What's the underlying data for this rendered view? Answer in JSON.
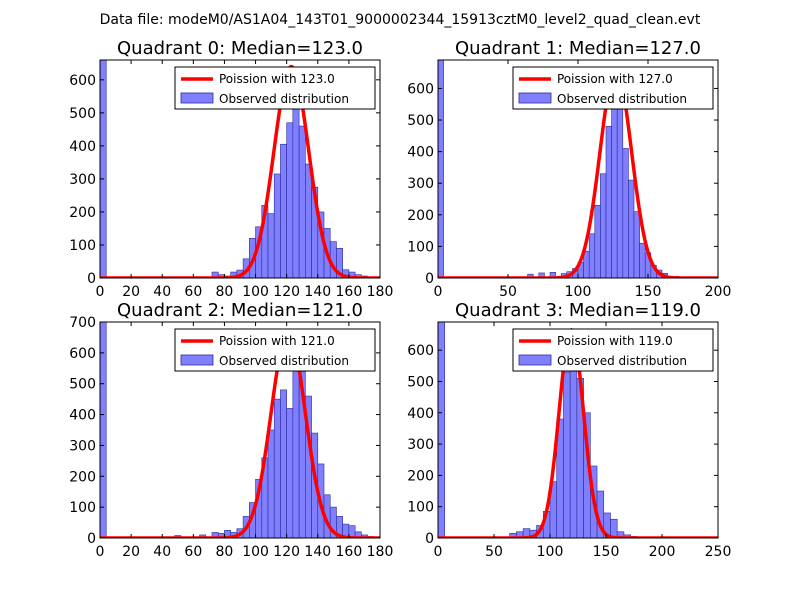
{
  "suptitle": "Data file: modeM0/AS1A04_143T01_9000002344_15913cztM0_level2_quad_clean.evt",
  "colors": {
    "curve": "#ff0000",
    "bar_fill": "#8080ff",
    "bar_edge": "#2a2a99",
    "frame": "#000000"
  },
  "chart_data": [
    {
      "type": "bar+line",
      "title": "Quadrant 0: Median=123.0",
      "legend": {
        "location": "top-right",
        "curve_label": "Poission with 123.0",
        "bar_label": "Observed distribution"
      },
      "xlim": [
        0,
        180
      ],
      "ylim": [
        0,
        660
      ],
      "xticks": [
        0,
        20,
        40,
        60,
        80,
        100,
        120,
        140,
        160,
        180
      ],
      "yticks": [
        0,
        100,
        200,
        300,
        400,
        500,
        600
      ],
      "bin_width": 4,
      "bins": [
        [
          0,
          660
        ],
        [
          72,
          18
        ],
        [
          76,
          10
        ],
        [
          80,
          6
        ],
        [
          84,
          18
        ],
        [
          88,
          24
        ],
        [
          92,
          58
        ],
        [
          96,
          120
        ],
        [
          100,
          155
        ],
        [
          104,
          220
        ],
        [
          108,
          195
        ],
        [
          112,
          315
        ],
        [
          116,
          405
        ],
        [
          120,
          470
        ],
        [
          124,
          560
        ],
        [
          128,
          460
        ],
        [
          132,
          345
        ],
        [
          136,
          275
        ],
        [
          140,
          200
        ],
        [
          144,
          150
        ],
        [
          148,
          110
        ],
        [
          152,
          90
        ],
        [
          156,
          25
        ],
        [
          160,
          18
        ],
        [
          164,
          10
        ],
        [
          168,
          6
        ],
        [
          172,
          3
        ]
      ],
      "curve": {
        "mean": 123.0,
        "peak": 640,
        "stroke": "#ff0000"
      }
    },
    {
      "type": "bar+line",
      "title": "Quadrant 1: Median=127.0",
      "legend": {
        "location": "top-right",
        "curve_label": "Poission with 127.0",
        "bar_label": "Observed distribution"
      },
      "xlim": [
        0,
        200
      ],
      "ylim": [
        0,
        690
      ],
      "xticks": [
        0,
        50,
        100,
        150,
        200
      ],
      "yticks": [
        0,
        100,
        200,
        300,
        400,
        500,
        600
      ],
      "bin_width": 4,
      "bins": [
        [
          0,
          690
        ],
        [
          64,
          12
        ],
        [
          72,
          16
        ],
        [
          80,
          18
        ],
        [
          88,
          14
        ],
        [
          92,
          20
        ],
        [
          96,
          30
        ],
        [
          100,
          50
        ],
        [
          104,
          85
        ],
        [
          108,
          140
        ],
        [
          112,
          230
        ],
        [
          116,
          330
        ],
        [
          120,
          480
        ],
        [
          124,
          620
        ],
        [
          128,
          560
        ],
        [
          132,
          410
        ],
        [
          136,
          310
        ],
        [
          140,
          210
        ],
        [
          144,
          110
        ],
        [
          148,
          80
        ],
        [
          152,
          40
        ],
        [
          156,
          25
        ],
        [
          160,
          15
        ],
        [
          168,
          5
        ]
      ],
      "curve": {
        "mean": 127.0,
        "peak": 660,
        "stroke": "#ff0000"
      }
    },
    {
      "type": "bar+line",
      "title": "Quadrant 2: Median=121.0",
      "legend": {
        "location": "top-right",
        "curve_label": "Poission with 121.0",
        "bar_label": "Observed distribution"
      },
      "xlim": [
        0,
        180
      ],
      "ylim": [
        0,
        700
      ],
      "xticks": [
        0,
        20,
        40,
        60,
        80,
        100,
        120,
        140,
        160,
        180
      ],
      "yticks": [
        0,
        100,
        200,
        300,
        400,
        500,
        600,
        700
      ],
      "bin_width": 4,
      "bins": [
        [
          0,
          700
        ],
        [
          48,
          8
        ],
        [
          64,
          10
        ],
        [
          72,
          18
        ],
        [
          76,
          15
        ],
        [
          80,
          25
        ],
        [
          84,
          18
        ],
        [
          88,
          30
        ],
        [
          92,
          70
        ],
        [
          96,
          115
        ],
        [
          100,
          190
        ],
        [
          104,
          260
        ],
        [
          108,
          350
        ],
        [
          112,
          450
        ],
        [
          116,
          480
        ],
        [
          120,
          420
        ],
        [
          124,
          600
        ],
        [
          128,
          540
        ],
        [
          132,
          460
        ],
        [
          136,
          340
        ],
        [
          140,
          240
        ],
        [
          144,
          140
        ],
        [
          148,
          100
        ],
        [
          152,
          70
        ],
        [
          156,
          45
        ],
        [
          160,
          40
        ],
        [
          164,
          20
        ],
        [
          168,
          10
        ],
        [
          172,
          5
        ]
      ],
      "curve": {
        "mean": 121.0,
        "peak": 670,
        "stroke": "#ff0000"
      }
    },
    {
      "type": "bar+line",
      "title": "Quadrant 3: Median=119.0",
      "legend": {
        "location": "top-right",
        "curve_label": "Poission with 119.0",
        "bar_label": "Observed distribution"
      },
      "xlim": [
        0,
        250
      ],
      "ylim": [
        0,
        690
      ],
      "xticks": [
        0,
        50,
        100,
        150,
        200,
        250
      ],
      "yticks": [
        0,
        100,
        200,
        300,
        400,
        500,
        600
      ],
      "bin_width": 6,
      "bins": [
        [
          0,
          690
        ],
        [
          64,
          15
        ],
        [
          70,
          20
        ],
        [
          76,
          30
        ],
        [
          82,
          25
        ],
        [
          88,
          40
        ],
        [
          94,
          85
        ],
        [
          100,
          180
        ],
        [
          106,
          380
        ],
        [
          112,
          530
        ],
        [
          118,
          600
        ],
        [
          124,
          510
        ],
        [
          130,
          400
        ],
        [
          136,
          230
        ],
        [
          142,
          150
        ],
        [
          148,
          80
        ],
        [
          154,
          60
        ],
        [
          160,
          20
        ],
        [
          166,
          10
        ],
        [
          172,
          5
        ]
      ],
      "curve": {
        "mean": 119.0,
        "peak": 665,
        "stroke": "#ff0000"
      }
    }
  ]
}
